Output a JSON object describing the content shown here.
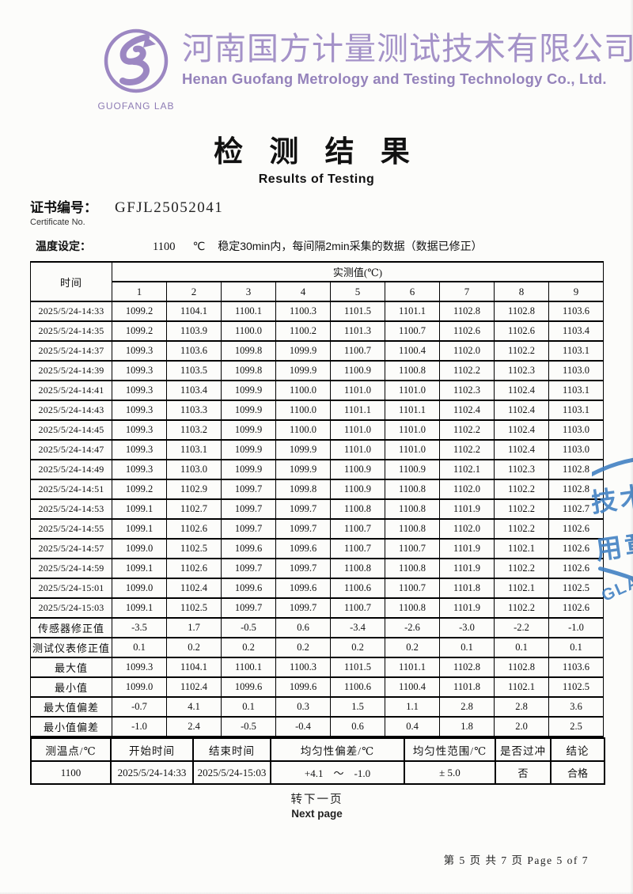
{
  "header": {
    "logo_caption": "GUOFANG LAB",
    "company_cn": "河南国方计量测试技术有限公司",
    "company_en": "Henan Guofang Metrology and Testing Technology Co., Ltd."
  },
  "title": {
    "cn": "检 测 结 果",
    "en": "Results of Testing"
  },
  "certificate": {
    "label_cn": "证书编号：",
    "label_en": "Certificate No.",
    "number": "GFJL25052041"
  },
  "setting": {
    "label": "温度设定：",
    "value": "1100",
    "unit": "℃",
    "note": "稳定30min内，每间隔2min采集的数据（数据已修正）"
  },
  "table": {
    "time_header": "时间",
    "value_header": "实测值(℃)",
    "channel_headers": [
      "1",
      "2",
      "3",
      "4",
      "5",
      "6",
      "7",
      "8",
      "9"
    ],
    "rows": [
      {
        "time": "2025/5/24-14:33",
        "values": [
          "1099.2",
          "1104.1",
          "1100.1",
          "1100.3",
          "1101.5",
          "1101.1",
          "1102.8",
          "1102.8",
          "1103.6"
        ]
      },
      {
        "time": "2025/5/24-14:35",
        "values": [
          "1099.2",
          "1103.9",
          "1100.0",
          "1100.2",
          "1101.3",
          "1100.7",
          "1102.6",
          "1102.6",
          "1103.4"
        ]
      },
      {
        "time": "2025/5/24-14:37",
        "values": [
          "1099.3",
          "1103.6",
          "1099.8",
          "1099.9",
          "1100.7",
          "1100.4",
          "1102.0",
          "1102.2",
          "1103.1"
        ]
      },
      {
        "time": "2025/5/24-14:39",
        "values": [
          "1099.3",
          "1103.5",
          "1099.8",
          "1099.9",
          "1100.9",
          "1100.8",
          "1102.2",
          "1102.3",
          "1103.0"
        ]
      },
      {
        "time": "2025/5/24-14:41",
        "values": [
          "1099.3",
          "1103.4",
          "1099.9",
          "1100.0",
          "1101.0",
          "1101.0",
          "1102.3",
          "1102.4",
          "1103.1"
        ]
      },
      {
        "time": "2025/5/24-14:43",
        "values": [
          "1099.3",
          "1103.3",
          "1099.9",
          "1100.0",
          "1101.1",
          "1101.1",
          "1102.4",
          "1102.4",
          "1103.1"
        ]
      },
      {
        "time": "2025/5/24-14:45",
        "values": [
          "1099.3",
          "1103.2",
          "1099.9",
          "1100.0",
          "1101.0",
          "1101.0",
          "1102.2",
          "1102.4",
          "1103.0"
        ]
      },
      {
        "time": "2025/5/24-14:47",
        "values": [
          "1099.3",
          "1103.1",
          "1099.9",
          "1099.9",
          "1101.0",
          "1101.0",
          "1102.2",
          "1102.4",
          "1103.0"
        ]
      },
      {
        "time": "2025/5/24-14:49",
        "values": [
          "1099.3",
          "1103.0",
          "1099.9",
          "1099.9",
          "1100.9",
          "1100.9",
          "1102.1",
          "1102.3",
          "1102.8"
        ]
      },
      {
        "time": "2025/5/24-14:51",
        "values": [
          "1099.2",
          "1102.9",
          "1099.7",
          "1099.8",
          "1100.9",
          "1100.8",
          "1102.0",
          "1102.2",
          "1102.8"
        ]
      },
      {
        "time": "2025/5/24-14:53",
        "values": [
          "1099.1",
          "1102.7",
          "1099.7",
          "1099.7",
          "1100.8",
          "1100.8",
          "1101.9",
          "1102.2",
          "1102.7"
        ]
      },
      {
        "time": "2025/5/24-14:55",
        "values": [
          "1099.1",
          "1102.6",
          "1099.7",
          "1099.7",
          "1100.7",
          "1100.8",
          "1102.0",
          "1102.2",
          "1102.6"
        ]
      },
      {
        "time": "2025/5/24-14:57",
        "values": [
          "1099.0",
          "1102.5",
          "1099.6",
          "1099.6",
          "1100.7",
          "1100.7",
          "1101.9",
          "1102.1",
          "1102.6"
        ]
      },
      {
        "time": "2025/5/24-14:59",
        "values": [
          "1099.1",
          "1102.6",
          "1099.7",
          "1099.7",
          "1100.8",
          "1100.8",
          "1101.9",
          "1102.2",
          "1102.6"
        ]
      },
      {
        "time": "2025/5/24-15:01",
        "values": [
          "1099.0",
          "1102.4",
          "1099.6",
          "1099.6",
          "1100.6",
          "1100.7",
          "1101.8",
          "1102.1",
          "1102.5"
        ]
      },
      {
        "time": "2025/5/24-15:03",
        "values": [
          "1099.1",
          "1102.5",
          "1099.7",
          "1099.7",
          "1100.7",
          "1100.8",
          "1101.9",
          "1102.2",
          "1102.6"
        ]
      }
    ],
    "summary_rows": [
      {
        "label": "传感器修正值",
        "values": [
          "-3.5",
          "1.7",
          "-0.5",
          "0.6",
          "-3.4",
          "-2.6",
          "-3.0",
          "-2.2",
          "-1.0"
        ]
      },
      {
        "label": "测试仪表修正值",
        "values": [
          "0.1",
          "0.2",
          "0.2",
          "0.2",
          "0.2",
          "0.2",
          "0.1",
          "0.1",
          "0.1"
        ]
      },
      {
        "label": "最大值",
        "values": [
          "1099.3",
          "1104.1",
          "1100.1",
          "1100.3",
          "1101.5",
          "1101.1",
          "1102.8",
          "1102.8",
          "1103.6"
        ]
      },
      {
        "label": "最小值",
        "values": [
          "1099.0",
          "1102.4",
          "1099.6",
          "1099.6",
          "1100.6",
          "1100.4",
          "1101.8",
          "1102.1",
          "1102.5"
        ]
      },
      {
        "label": "最大值偏差",
        "values": [
          "-0.7",
          "4.1",
          "0.1",
          "0.3",
          "1.5",
          "1.1",
          "2.8",
          "2.8",
          "3.6"
        ]
      },
      {
        "label": "最小值偏差",
        "values": [
          "-1.0",
          "2.4",
          "-0.5",
          "-0.4",
          "0.6",
          "0.4",
          "1.8",
          "2.0",
          "2.5"
        ]
      }
    ]
  },
  "result_table": {
    "headers": [
      "测温点/℃",
      "开始时间",
      "结束时间",
      "均匀性偏差/℃",
      "均匀性范围/℃",
      "是否过冲",
      "结论"
    ],
    "values": [
      "1100",
      "2025/5/24-14:33",
      "2025/5/24-15:03",
      "+4.1　～　-1.0",
      "± 5.0",
      "否",
      "合格"
    ]
  },
  "pagination": {
    "next_cn": "转下一页",
    "next_en": "Next page",
    "footer": "第 5 页 共 7 页 Page 5 of 7"
  },
  "stamp": {
    "line1": "技术",
    "line2": "用章",
    "arc_text": "GLAN"
  },
  "colors": {
    "brand_purple": "#a492c8",
    "stamp_blue": "#3d7ec2"
  }
}
